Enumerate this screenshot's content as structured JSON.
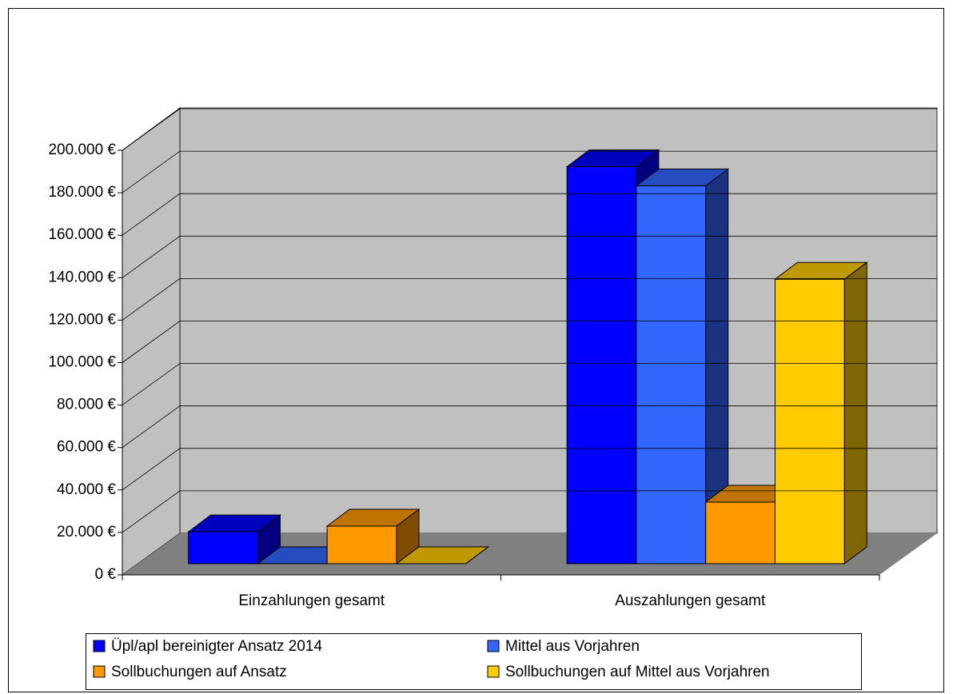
{
  "chart_data": {
    "type": "bar3d",
    "categories": [
      "Einzahlungen gesamt",
      "Auszahlungen gesamt"
    ],
    "series": [
      {
        "name": "Üpl/apl bereinigter Ansatz 2014",
        "color": "#0000ff",
        "values": [
          15000,
          187000
        ]
      },
      {
        "name": "Mittel aus Vorjahren",
        "color": "#3366ff",
        "values": [
          0,
          178000
        ]
      },
      {
        "name": "Sollbuchungen auf Ansatz",
        "color": "#ff9900",
        "values": [
          17700,
          29000
        ]
      },
      {
        "name": "Sollbuchungen auf Mittel aus Vorjahren",
        "color": "#ffcc00",
        "values": [
          0,
          134000
        ]
      }
    ],
    "ylim": [
      0,
      200000
    ],
    "yticks": [
      {
        "value": 0,
        "label": "0 €"
      },
      {
        "value": 20000,
        "label": "20.000 €"
      },
      {
        "value": 40000,
        "label": "40.000 €"
      },
      {
        "value": 60000,
        "label": "60.000 €"
      },
      {
        "value": 80000,
        "label": "80.000 €"
      },
      {
        "value": 100000,
        "label": "100.000 €"
      },
      {
        "value": 120000,
        "label": "120.000 €"
      },
      {
        "value": 140000,
        "label": "140.000 €"
      },
      {
        "value": 160000,
        "label": "160.000 €"
      },
      {
        "value": 180000,
        "label": "180.000 €"
      },
      {
        "value": 200000,
        "label": "200.000 €"
      }
    ],
    "grid": true,
    "legend": "bottom"
  }
}
